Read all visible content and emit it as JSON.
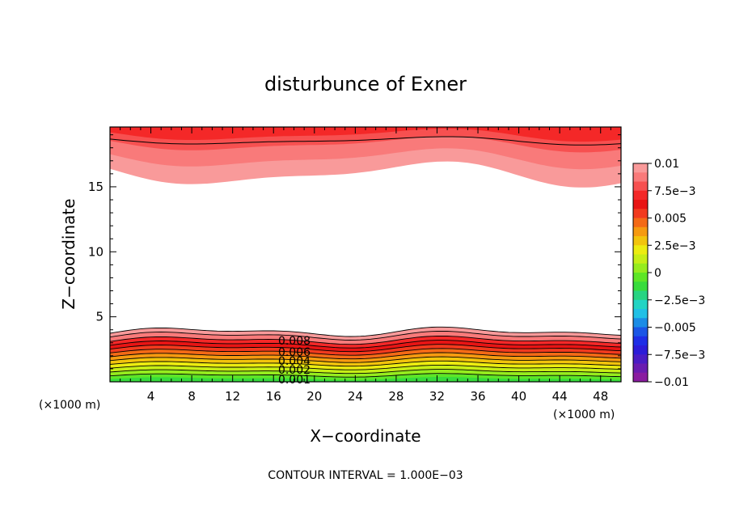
{
  "chart_data": {
    "type": "contour",
    "title": "disturbunce of Exner",
    "xlabel": "X−coordinate",
    "ylabel": "Z−coordinate",
    "x_unit_left": "(×1000 m)",
    "x_unit_right": "(×1000 m)",
    "xlim": [
      0,
      50
    ],
    "ylim": [
      0,
      19.6
    ],
    "x_ticks": [
      "4",
      "8",
      "12",
      "16",
      "20",
      "24",
      "28",
      "32",
      "36",
      "40",
      "44",
      "48"
    ],
    "y_ticks": [
      "5",
      "10",
      "15"
    ],
    "contour_labels": [
      "0.008",
      "0.006",
      "0.004",
      "0.002",
      "0.001"
    ],
    "colorbar": {
      "range": [
        -0.01,
        0.01
      ],
      "tick_labels": [
        "0.01",
        "7.5e−3",
        "0.005",
        "2.5e−3",
        "0",
        "−2.5e−3",
        "−0.005",
        "−7.5e−3",
        "−0.01"
      ],
      "colors": [
        "#f99a9a",
        "#f97a7a",
        "#f75050",
        "#f42828",
        "#e81414",
        "#f23a1e",
        "#f46a16",
        "#f69a10",
        "#f2c40c",
        "#ecec10",
        "#c6ee16",
        "#96ec1e",
        "#5ee626",
        "#38dc3c",
        "#28d482",
        "#22d4c4",
        "#20c0e6",
        "#1a8ce6",
        "#1a56e6",
        "#1e2ee6",
        "#2c1cd8",
        "#4a1cc4",
        "#6a1cb0",
        "#8a1ca0"
      ]
    },
    "contour_interval_text": "CONTOUR INTERVAL = 1.000E−03"
  }
}
